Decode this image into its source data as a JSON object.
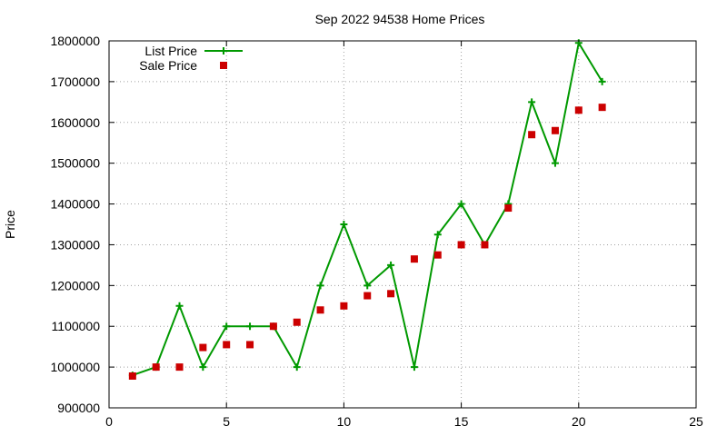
{
  "chart_data": {
    "type": "line",
    "title": "Sep 2022 94538 Home Prices",
    "xlabel": "",
    "ylabel": "Price",
    "xlim": [
      0,
      25
    ],
    "ylim": [
      900000,
      1800000
    ],
    "x_ticks": [
      0,
      5,
      10,
      15,
      20,
      25
    ],
    "y_ticks": [
      900000,
      1000000,
      1100000,
      1200000,
      1300000,
      1400000,
      1500000,
      1600000,
      1700000,
      1800000
    ],
    "grid": true,
    "legend_position": "top-left",
    "series": [
      {
        "name": "List Price",
        "style": "line-with-plus-markers",
        "color": "#009900",
        "x": [
          1,
          2,
          3,
          4,
          5,
          6,
          7,
          8,
          9,
          10,
          11,
          12,
          13,
          14,
          15,
          16,
          17,
          18,
          19,
          20,
          21
        ],
        "values": [
          980000,
          1000000,
          1150000,
          1000000,
          1100000,
          1100000,
          1100000,
          1000000,
          1200000,
          1350000,
          1200000,
          1250000,
          1000000,
          1325000,
          1400000,
          1300000,
          1400000,
          1650000,
          1500000,
          1795000,
          1700000
        ]
      },
      {
        "name": "Sale Price",
        "style": "square-markers",
        "color": "#cc0000",
        "x": [
          1,
          2,
          3,
          4,
          5,
          6,
          7,
          8,
          9,
          10,
          11,
          12,
          13,
          14,
          15,
          16,
          17,
          18,
          19,
          20,
          21
        ],
        "values": [
          978000,
          1000000,
          1000000,
          1048000,
          1055000,
          1055000,
          1100000,
          1110000,
          1140000,
          1150000,
          1175000,
          1180000,
          1265000,
          1275000,
          1300000,
          1300000,
          1390000,
          1570000,
          1580000,
          1630000,
          1637000
        ]
      }
    ]
  }
}
